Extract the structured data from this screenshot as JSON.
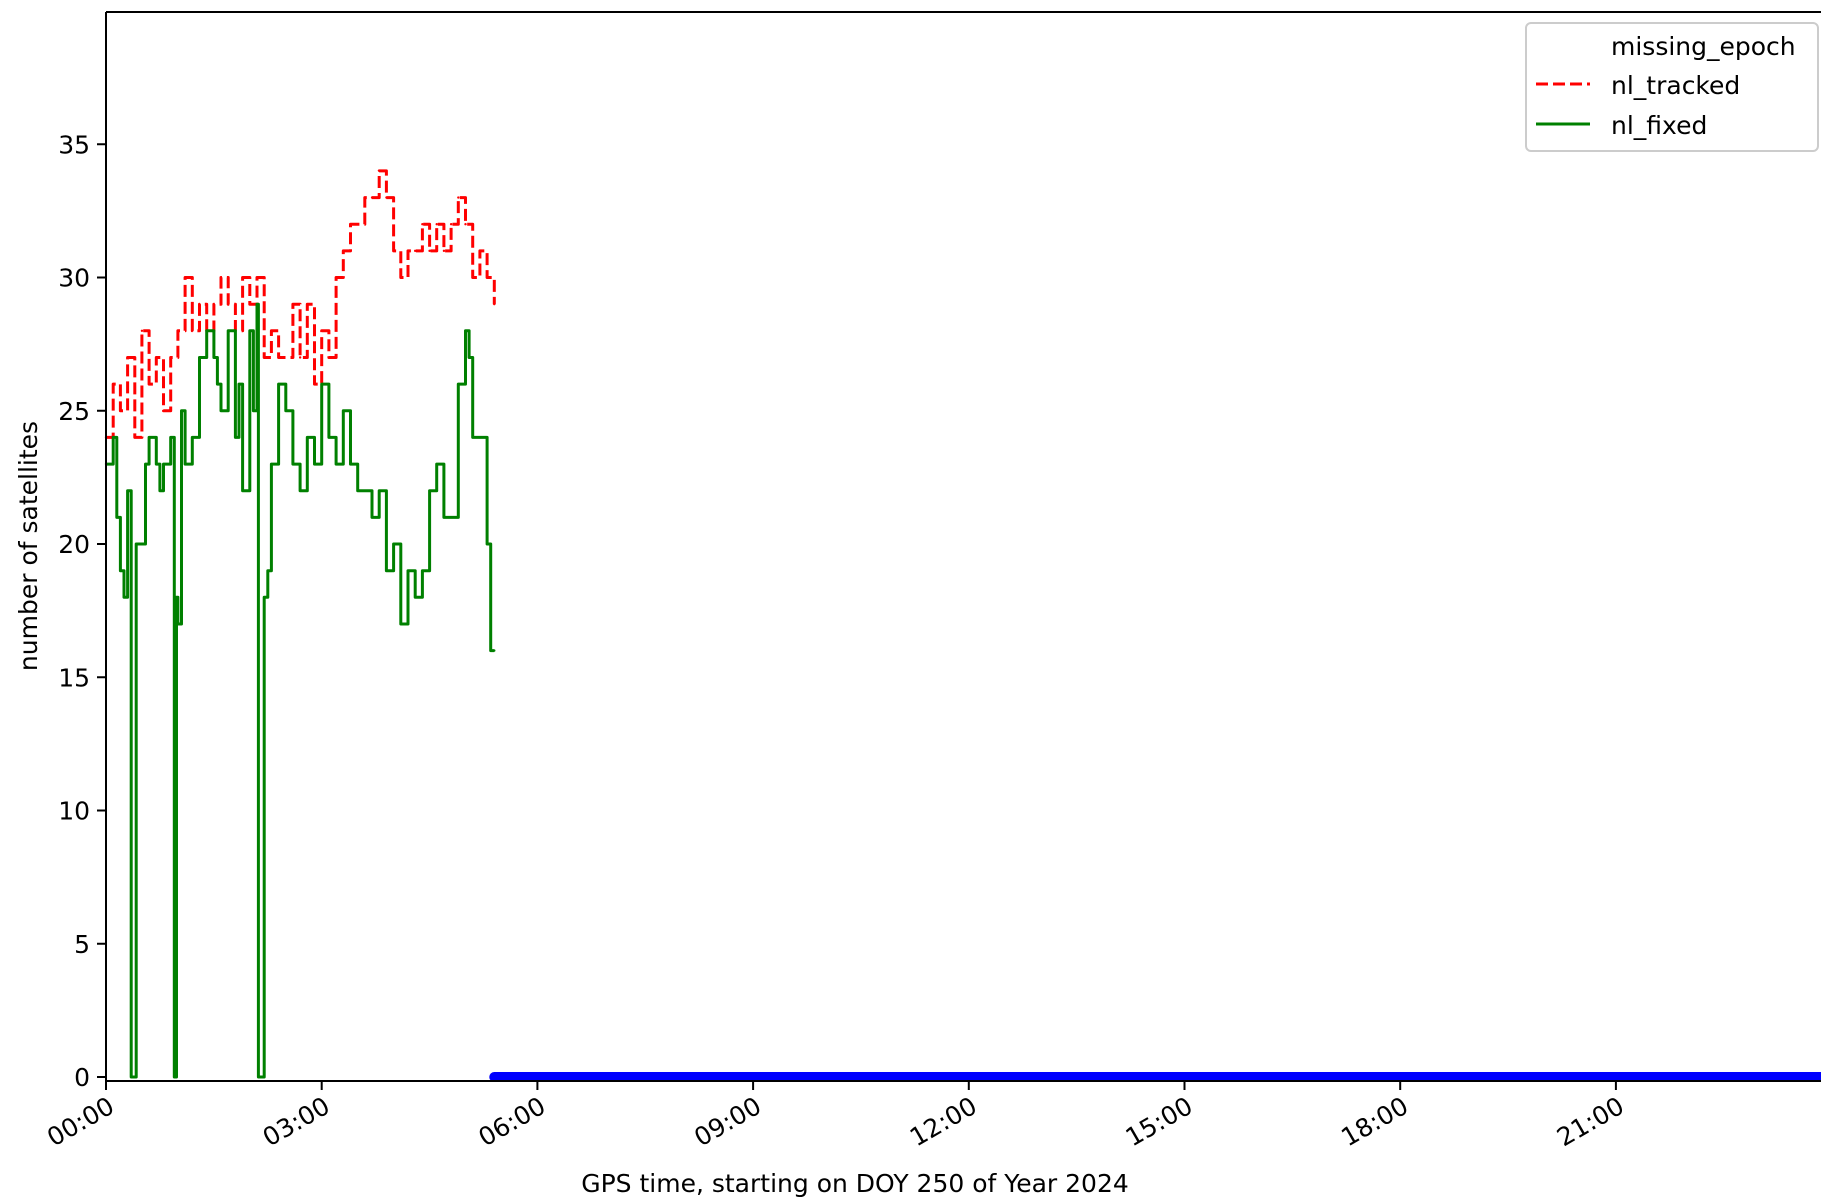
{
  "chart_data": {
    "type": "line",
    "xlabel": "GPS time, starting on DOY 250 of Year 2024",
    "ylabel": "number of satellites",
    "xlim": [
      0,
      24
    ],
    "ylim": [
      -0.2,
      40
    ],
    "x_unit": "hours",
    "x_ticks": [
      {
        "value": 0,
        "label": "00:00"
      },
      {
        "value": 3,
        "label": "03:00"
      },
      {
        "value": 6,
        "label": "06:00"
      },
      {
        "value": 9,
        "label": "09:00"
      },
      {
        "value": 12,
        "label": "12:00"
      },
      {
        "value": 15,
        "label": "15:00"
      },
      {
        "value": 18,
        "label": "18:00"
      },
      {
        "value": 21,
        "label": "21:00"
      }
    ],
    "y_ticks": [
      0,
      5,
      10,
      15,
      20,
      25,
      30,
      35
    ],
    "grid": false,
    "legend_position": "top-right",
    "series": [
      {
        "name": "missing_epoch",
        "style": "markers",
        "color": "#0000ff",
        "x_range": [
          5.4,
          24
        ],
        "y": 0
      },
      {
        "name": "nl_tracked",
        "style": "dashed",
        "color": "#ff0000",
        "points": [
          [
            0.0,
            24
          ],
          [
            0.1,
            26
          ],
          [
            0.2,
            25
          ],
          [
            0.3,
            27
          ],
          [
            0.4,
            24
          ],
          [
            0.5,
            28
          ],
          [
            0.6,
            26
          ],
          [
            0.7,
            27
          ],
          [
            0.8,
            25
          ],
          [
            0.9,
            27
          ],
          [
            1.0,
            28
          ],
          [
            1.1,
            30
          ],
          [
            1.2,
            28
          ],
          [
            1.3,
            29
          ],
          [
            1.4,
            28
          ],
          [
            1.5,
            29
          ],
          [
            1.6,
            30
          ],
          [
            1.7,
            29
          ],
          [
            1.8,
            28
          ],
          [
            1.9,
            30
          ],
          [
            2.0,
            29
          ],
          [
            2.1,
            30
          ],
          [
            2.2,
            27
          ],
          [
            2.3,
            28
          ],
          [
            2.4,
            27
          ],
          [
            2.6,
            29
          ],
          [
            2.7,
            27
          ],
          [
            2.8,
            29
          ],
          [
            2.9,
            26
          ],
          [
            3.0,
            28
          ],
          [
            3.1,
            27
          ],
          [
            3.2,
            30
          ],
          [
            3.3,
            31
          ],
          [
            3.4,
            32
          ],
          [
            3.5,
            32
          ],
          [
            3.6,
            33
          ],
          [
            3.7,
            33
          ],
          [
            3.8,
            34
          ],
          [
            3.9,
            33
          ],
          [
            4.0,
            31
          ],
          [
            4.1,
            30
          ],
          [
            4.2,
            31
          ],
          [
            4.3,
            31
          ],
          [
            4.4,
            32
          ],
          [
            4.5,
            31
          ],
          [
            4.6,
            32
          ],
          [
            4.7,
            31
          ],
          [
            4.8,
            32
          ],
          [
            4.9,
            33
          ],
          [
            5.0,
            32
          ],
          [
            5.1,
            30
          ],
          [
            5.2,
            31
          ],
          [
            5.3,
            30
          ],
          [
            5.4,
            29
          ]
        ]
      },
      {
        "name": "nl_fixed",
        "style": "solid",
        "color": "#008000",
        "points": [
          [
            0.0,
            23
          ],
          [
            0.1,
            24
          ],
          [
            0.15,
            21
          ],
          [
            0.2,
            19
          ],
          [
            0.25,
            18
          ],
          [
            0.3,
            22
          ],
          [
            0.35,
            0
          ],
          [
            0.4,
            0
          ],
          [
            0.42,
            20
          ],
          [
            0.5,
            20
          ],
          [
            0.55,
            23
          ],
          [
            0.6,
            24
          ],
          [
            0.7,
            23
          ],
          [
            0.75,
            22
          ],
          [
            0.8,
            23
          ],
          [
            0.9,
            24
          ],
          [
            0.95,
            0
          ],
          [
            0.98,
            18
          ],
          [
            1.0,
            17
          ],
          [
            1.05,
            25
          ],
          [
            1.1,
            23
          ],
          [
            1.2,
            24
          ],
          [
            1.3,
            27
          ],
          [
            1.4,
            28
          ],
          [
            1.5,
            27
          ],
          [
            1.55,
            26
          ],
          [
            1.6,
            25
          ],
          [
            1.7,
            28
          ],
          [
            1.8,
            24
          ],
          [
            1.85,
            26
          ],
          [
            1.9,
            22
          ],
          [
            2.0,
            28
          ],
          [
            2.05,
            25
          ],
          [
            2.1,
            29
          ],
          [
            2.12,
            0
          ],
          [
            2.18,
            0
          ],
          [
            2.2,
            18
          ],
          [
            2.25,
            19
          ],
          [
            2.3,
            23
          ],
          [
            2.4,
            26
          ],
          [
            2.5,
            25
          ],
          [
            2.6,
            23
          ],
          [
            2.7,
            22
          ],
          [
            2.8,
            24
          ],
          [
            2.9,
            23
          ],
          [
            3.0,
            26
          ],
          [
            3.1,
            24
          ],
          [
            3.2,
            23
          ],
          [
            3.3,
            25
          ],
          [
            3.4,
            23
          ],
          [
            3.5,
            22
          ],
          [
            3.6,
            22
          ],
          [
            3.7,
            21
          ],
          [
            3.8,
            22
          ],
          [
            3.9,
            19
          ],
          [
            4.0,
            20
          ],
          [
            4.1,
            17
          ],
          [
            4.2,
            19
          ],
          [
            4.3,
            18
          ],
          [
            4.4,
            19
          ],
          [
            4.5,
            22
          ],
          [
            4.6,
            23
          ],
          [
            4.7,
            21
          ],
          [
            4.8,
            21
          ],
          [
            4.9,
            26
          ],
          [
            5.0,
            28
          ],
          [
            5.05,
            27
          ],
          [
            5.1,
            24
          ],
          [
            5.2,
            24
          ],
          [
            5.3,
            20
          ],
          [
            5.35,
            16
          ],
          [
            5.4,
            16
          ]
        ]
      }
    ]
  }
}
